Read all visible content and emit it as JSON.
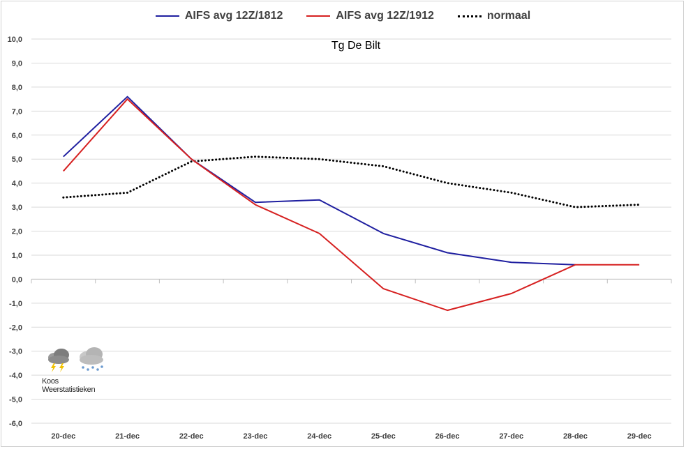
{
  "logo": {
    "text": "Koos Weerstatistieken",
    "icons": [
      "thunderstorm-cloud-icon",
      "snow-cloud-icon"
    ]
  },
  "chart_data": {
    "type": "line",
    "title": "Tg De Bilt",
    "xlabel": "",
    "ylabel": "",
    "categories": [
      "20-dec",
      "21-dec",
      "22-dec",
      "23-dec",
      "24-dec",
      "25-dec",
      "26-dec",
      "27-dec",
      "28-dec",
      "29-dec"
    ],
    "ylim": [
      -6.0,
      10.0
    ],
    "ytick_step": 1.0,
    "yticks": [
      "-6,0",
      "-5,0",
      "-4,0",
      "-3,0",
      "-2,0",
      "-1,0",
      "0,0",
      "1,0",
      "2,0",
      "3,0",
      "4,0",
      "5,0",
      "6,0",
      "7,0",
      "8,0",
      "9,0",
      "10,0"
    ],
    "grid": true,
    "legend_position": "top-center",
    "series": [
      {
        "name": "AIFS avg 12Z/1812",
        "color": "#1f1fa0",
        "style": "solid",
        "values": [
          5.1,
          7.6,
          5.0,
          3.2,
          3.3,
          1.9,
          1.1,
          0.7,
          0.6,
          null
        ]
      },
      {
        "name": "AIFS avg 12Z/1912",
        "color": "#d62020",
        "style": "solid",
        "values": [
          4.5,
          7.5,
          5.0,
          3.1,
          1.9,
          -0.4,
          -1.3,
          -0.6,
          0.6,
          0.6
        ]
      },
      {
        "name": "normaal",
        "color": "#000000",
        "style": "dotted",
        "values": [
          3.4,
          3.6,
          4.9,
          5.1,
          5.0,
          4.7,
          4.0,
          3.6,
          3.0,
          3.1
        ]
      }
    ]
  }
}
